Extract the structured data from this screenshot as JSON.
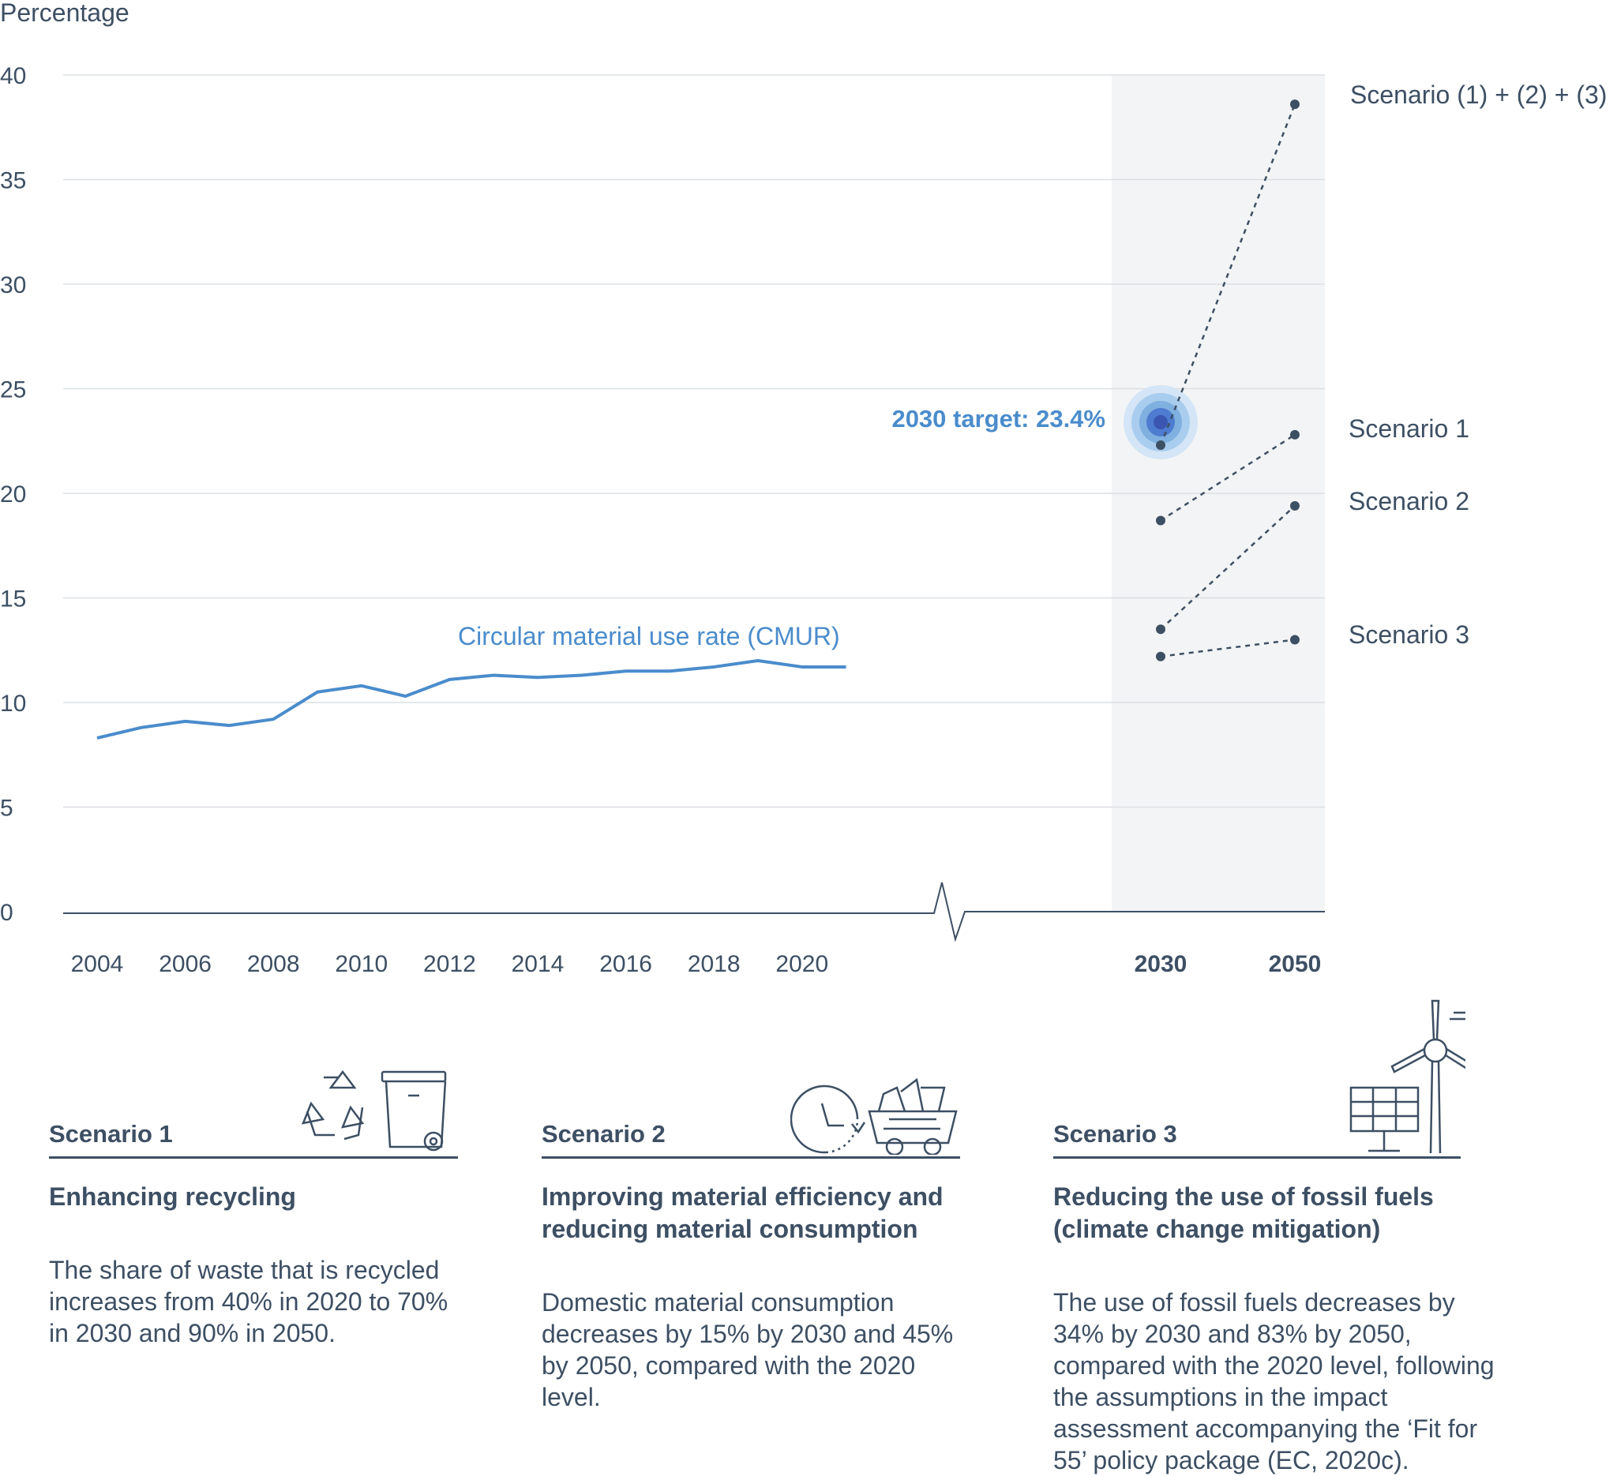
{
  "chart_data": {
    "type": "line",
    "ylabel": "Percentage",
    "ylim": [
      0,
      40
    ],
    "yticks": [
      "0",
      "5",
      "10",
      "15",
      "20",
      "25",
      "30",
      "35",
      "40"
    ],
    "historical_ticks": [
      "2004",
      "2006",
      "2008",
      "2010",
      "2012",
      "2014",
      "2016",
      "2018",
      "2020"
    ],
    "projection_ticks": [
      "2030",
      "2050"
    ],
    "series": [
      {
        "name": "Circular material use rate (CMUR)",
        "x": [
          2004,
          2005,
          2006,
          2007,
          2008,
          2009,
          2010,
          2011,
          2012,
          2013,
          2014,
          2015,
          2016,
          2017,
          2018,
          2019,
          2020,
          2021
        ],
        "values": [
          8.3,
          8.8,
          9.1,
          8.9,
          9.2,
          10.5,
          10.8,
          10.3,
          11.1,
          11.3,
          11.2,
          11.3,
          11.5,
          11.5,
          11.7,
          12.0,
          11.7,
          11.7
        ],
        "color": "#4a8ccc"
      }
    ],
    "scenarios": [
      {
        "name": "Scenario (1) + (2) + (3)",
        "v2030": 22.3,
        "v2050": 38.6
      },
      {
        "name": "Scenario 1",
        "v2030": 18.7,
        "v2050": 22.8
      },
      {
        "name": "Scenario 2",
        "v2030": 13.5,
        "v2050": 19.4
      },
      {
        "name": "Scenario 3",
        "v2030": 12.2,
        "v2050": 13.0
      }
    ],
    "target": {
      "label": "2030 target: 23.4%",
      "value": 23.4,
      "year": 2030
    },
    "grid": true,
    "colors": {
      "cmur": "#4a8ccc",
      "scenario": "#3d4f63",
      "target": "#4a8ccc",
      "projection_band": "#f3f4f5"
    }
  },
  "panels": [
    {
      "name": "Scenario 1",
      "title": "Enhancing recycling",
      "text": "The share of waste that is recycled increases from 40% in 2020 to 70% in 2030 and 90% in 2050.",
      "icon": "recycling-bin-icon"
    },
    {
      "name": "Scenario 2",
      "title": "Improving material efficiency and reducing material consumption",
      "text": "Domestic material consumption decreases by 15% by 2030 and 45% by 2050, compared with the 2020 level.",
      "icon": "clock-cart-icon"
    },
    {
      "name": "Scenario 3",
      "title": "Reducing the use of fossil fuels (climate change mitigation)",
      "text": "The use of fossil fuels decreases by 34% by 2030 and 83% by 2050, compared with the 2020 level, following the assumptions in the impact assessment accompanying the ‘Fit for 55’ policy package (EC, 2020c).",
      "icon": "solar-wind-icon"
    }
  ]
}
